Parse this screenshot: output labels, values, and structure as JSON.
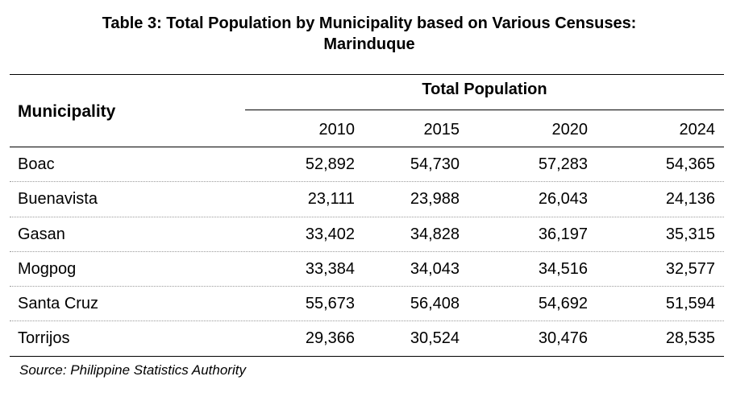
{
  "title": {
    "line1": "Table 3: Total Population by Municipality based on Various Censuses:",
    "line2": "Marinduque"
  },
  "table": {
    "municipality_header": "Municipality",
    "group_header": "Total Population",
    "years": [
      "2010",
      "2015",
      "2020",
      "2024"
    ],
    "rows": [
      {
        "name": "Boac",
        "values": [
          "52,892",
          "54,730",
          "57,283",
          "54,365"
        ]
      },
      {
        "name": "Buenavista",
        "values": [
          "23,111",
          "23,988",
          "26,043",
          "24,136"
        ]
      },
      {
        "name": "Gasan",
        "values": [
          "33,402",
          "34,828",
          "36,197",
          "35,315"
        ]
      },
      {
        "name": "Mogpog",
        "values": [
          "33,384",
          "34,043",
          "34,516",
          "32,577"
        ]
      },
      {
        "name": "Santa Cruz",
        "values": [
          "55,673",
          "56,408",
          "54,692",
          "51,594"
        ]
      },
      {
        "name": "Torrijos",
        "values": [
          "29,366",
          "30,524",
          "30,476",
          "28,535"
        ]
      }
    ]
  },
  "source": "Source: Philippine Statistics Authority"
}
